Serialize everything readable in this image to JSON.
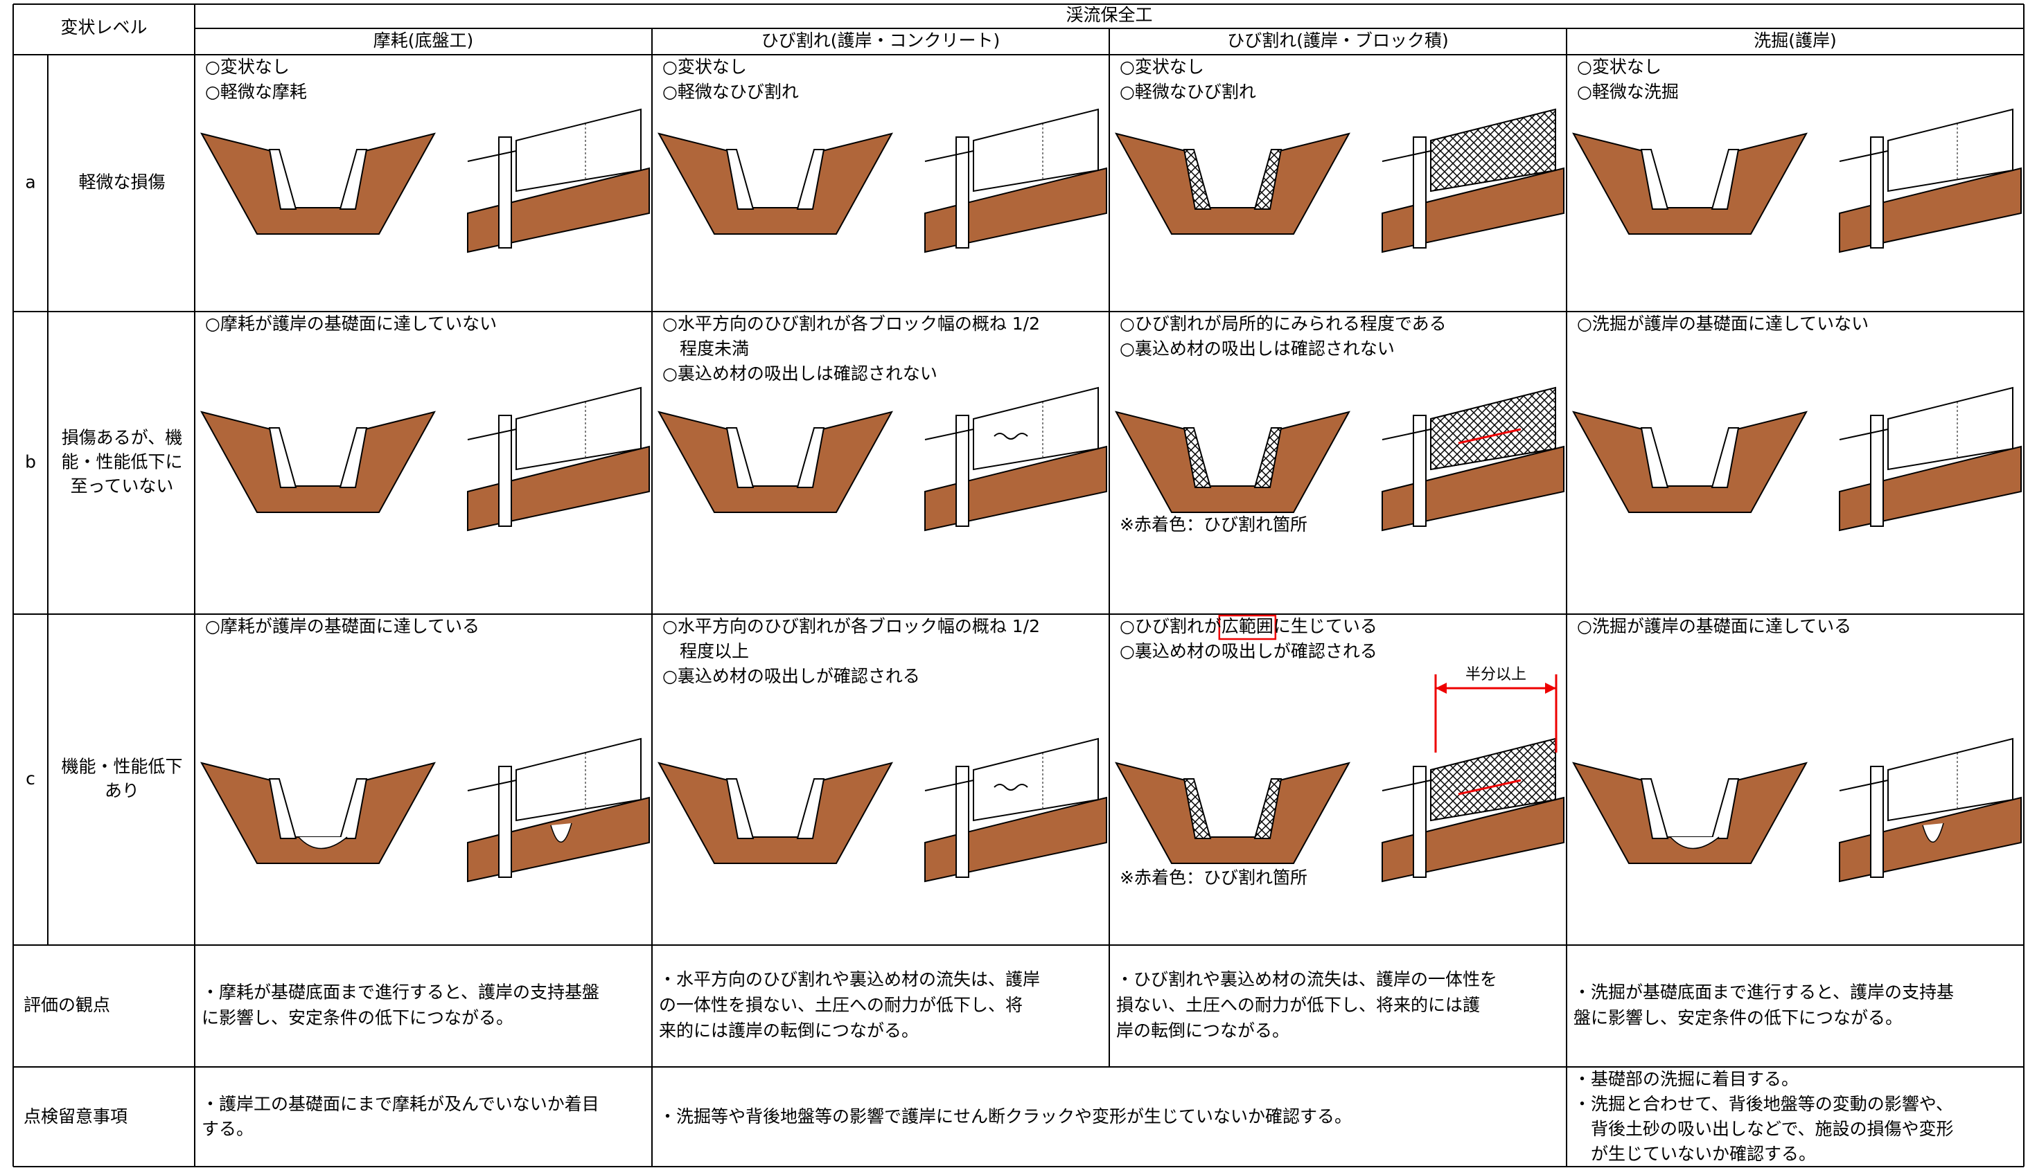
{
  "header": {
    "level": "変状レベル",
    "group": "渓流保全工",
    "columns": [
      "摩耗(底盤工)",
      "ひび割れ(護岸・コンクリート)",
      "ひび割れ(護岸・ブロック積)",
      "洗掘(護岸)"
    ]
  },
  "rows": [
    {
      "level": "a",
      "label": [
        "軽微な損傷"
      ],
      "cells": [
        {
          "lines": [
            "○変状なし",
            "○軽微な摩耗"
          ]
        },
        {
          "lines": [
            "○変状なし",
            "○軽微なひび割れ"
          ]
        },
        {
          "lines": [
            "○変状なし",
            "○軽微なひび割れ"
          ]
        },
        {
          "lines": [
            "○変状なし",
            "○軽微な洗掘"
          ]
        }
      ]
    },
    {
      "level": "b",
      "label": [
        "損傷あるが、機",
        "能・性能低下に",
        "至っていない"
      ],
      "cells": [
        {
          "lines": [
            "○摩耗が護岸の基礎面に達していない"
          ]
        },
        {
          "lines": [
            "○水平方向のひび割れが各ブロック幅の概ね 1/2",
            "　程度未満",
            "○裏込め材の吸出しは確認されない"
          ]
        },
        {
          "lines": [
            "○ひび割れが局所的にみられる程度である",
            "○裏込め材の吸出しは確認されない"
          ],
          "note": "※赤着色：ひび割れ箇所"
        },
        {
          "lines": [
            "○洗掘が護岸の基礎面に達していない"
          ]
        }
      ]
    },
    {
      "level": "c",
      "label": [
        "機能・性能低下",
        "あり"
      ],
      "cells": [
        {
          "lines": [
            "○摩耗が護岸の基礎面に達している"
          ]
        },
        {
          "lines": [
            "○水平方向のひび割れが各ブロック幅の概ね 1/2",
            "　程度以上",
            "○裏込め材の吸出しが確認される"
          ]
        },
        {
          "lines": [
            [
              "○ひび割れが",
              "広範囲",
              "に生じている"
            ],
            "○裏込め材の吸出しが確認される"
          ],
          "note": "※赤着色：ひび割れ箇所",
          "annotation": "半分以上"
        },
        {
          "lines": [
            "○洗掘が護岸の基礎面に達している"
          ]
        }
      ]
    }
  ],
  "evaluation": {
    "label": "評価の観点",
    "cells": [
      [
        "・摩耗が基礎底面まで進行すると、護岸の支持基盤",
        "に影響し、安定条件の低下につながる。"
      ],
      [
        "・水平方向のひび割れや裏込め材の流失は、護岸",
        "の一体性を損ない、土圧への耐力が低下し、将",
        "来的には護岸の転倒につながる。"
      ],
      [
        "・ひび割れや裏込め材の流失は、護岸の一体性を",
        "損ない、土圧への耐力が低下し、将来的には護",
        "岸の転倒につながる。"
      ],
      [
        "・洗掘が基礎底面まで進行すると、護岸の支持基",
        "盤に影響し、安定条件の低下につながる。"
      ]
    ]
  },
  "inspection": {
    "label": "点検留意事項",
    "cells": [
      [
        "・護岸工の基礎面にまで摩耗が及んでいないか着目",
        "する。"
      ],
      [
        "・洗掘等や背後地盤等の影響で護岸にせん断クラックや変形が生じていないか確認する。"
      ],
      [
        "・基礎部の洗掘に着目する。",
        "・洗掘と合わせて、背後地盤等の変動の影響や、",
        "　背後土砂の吸い出しなどで、施設の損傷や変形",
        "　が生じていないか確認する。"
      ]
    ]
  }
}
